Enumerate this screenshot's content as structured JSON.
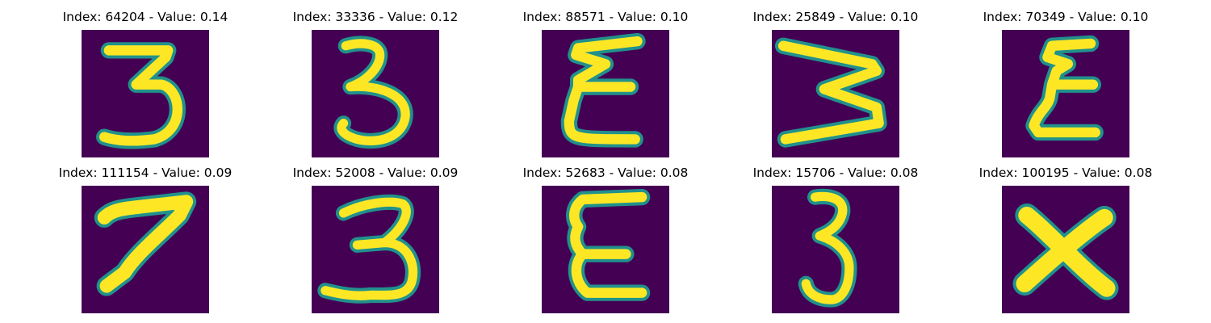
{
  "colors": {
    "background": "#440154",
    "stroke_outer": "#35b779",
    "stroke_inner": "#fde725",
    "edge": "#21918c"
  },
  "panels": [
    {
      "title": "Index: 64204 - Value: 0.14",
      "glyph": "three-flat-top"
    },
    {
      "title": "Index: 33336 - Value: 0.12",
      "glyph": "three-round"
    },
    {
      "title": "Index: 88571 - Value: 0.10",
      "glyph": "sigma-like"
    },
    {
      "title": "Index: 25849 - Value: 0.10",
      "glyph": "rotated-w"
    },
    {
      "title": "Index: 70349 - Value: 0.10",
      "glyph": "sigma-like-2"
    },
    {
      "title": "Index: 111154 - Value: 0.09",
      "glyph": "seven"
    },
    {
      "title": "Index: 52008 - Value: 0.09",
      "glyph": "three-open"
    },
    {
      "title": "Index: 52683 - Value: 0.08",
      "glyph": "e-shape"
    },
    {
      "title": "Index: 15706 - Value: 0.08",
      "glyph": "three-narrow"
    },
    {
      "title": "Index: 100195 - Value: 0.08",
      "glyph": "x-shape"
    }
  ]
}
